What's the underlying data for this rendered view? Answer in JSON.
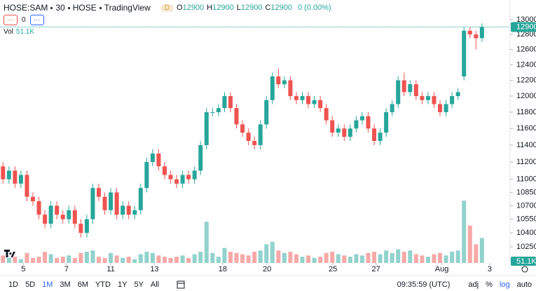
{
  "header": {
    "symbol": "HOSE:SAM",
    "interval": "30",
    "exchange": "HOSE",
    "source": "TradingView",
    "flag": "D",
    "ohlc": [
      {
        "label": "O",
        "value": "12900"
      },
      {
        "label": "H",
        "value": "12900"
      },
      {
        "label": "L",
        "value": "12900"
      },
      {
        "label": "C",
        "value": "12900"
      }
    ],
    "change": "0 (0.00%)",
    "buttons": [
      "…",
      "…"
    ],
    "indicator_count": "0",
    "vol_label": "Vol",
    "vol_value": "51.1K"
  },
  "chart_data": {
    "type": "candlestick",
    "log_scale": true,
    "up_color": "#26a69a",
    "down_color": "#ef5350",
    "xlim": [
      -0.5,
      84.7
    ],
    "ylim": [
      10115,
      13076
    ],
    "yticks": [
      13000,
      12800,
      12600,
      12400,
      12200,
      12000,
      11800,
      11600,
      11400,
      11200,
      11000,
      10850,
      10700,
      10550,
      10400,
      10250
    ],
    "xticks": [
      {
        "value": 3.4,
        "label": "5"
      },
      {
        "value": 10.6,
        "label": "7"
      },
      {
        "value": 18,
        "label": "11"
      },
      {
        "value": 25.3,
        "label": "13"
      },
      {
        "value": 36.7,
        "label": "18"
      },
      {
        "value": 44.1,
        "label": "20"
      },
      {
        "value": 55.1,
        "label": "25"
      },
      {
        "value": 62.3,
        "label": "27"
      },
      {
        "value": 73.3,
        "label": "Aug"
      },
      {
        "value": 81.3,
        "label": "3"
      }
    ],
    "open": [
      11150,
      11000,
      11100,
      10950,
      11050,
      10800,
      10750,
      10600,
      10500,
      10700,
      10600,
      10550,
      10650,
      10500,
      10400,
      10550,
      10900,
      10800,
      10650,
      10850,
      10600,
      10700,
      10600,
      10650,
      10900,
      11200,
      11300,
      11150,
      11050,
      11000,
      10950,
      11050,
      11000,
      11100,
      11400,
      11800,
      11800,
      11850,
      12000,
      11850,
      11650,
      11550,
      11450,
      11400,
      11650,
      11950,
      12250,
      12150,
      12200,
      12000,
      11950,
      12000,
      11900,
      11950,
      11850,
      11700,
      11550,
      11600,
      11500,
      11600,
      11700,
      11750,
      11600,
      11450,
      11550,
      11800,
      11900,
      12200,
      12050,
      12150,
      12000,
      11950,
      12000,
      11900,
      11800,
      11900,
      12000,
      12250,
      12850,
      12800,
      12750
    ],
    "high": [
      11200,
      11150,
      11150,
      11100,
      11100,
      10850,
      10800,
      10650,
      10750,
      10750,
      10650,
      10700,
      10700,
      10550,
      10600,
      10950,
      10950,
      10850,
      10900,
      10900,
      10750,
      10750,
      10700,
      10950,
      11250,
      11350,
      11350,
      11200,
      11100,
      11050,
      11100,
      11100,
      11150,
      11450,
      11850,
      11850,
      11900,
      12050,
      12050,
      11900,
      11700,
      11600,
      11500,
      11700,
      12000,
      12300,
      12350,
      12250,
      12250,
      12050,
      12050,
      12050,
      12000,
      12000,
      11900,
      11750,
      11650,
      11650,
      11650,
      11750,
      11800,
      11800,
      11650,
      11600,
      11850,
      11950,
      12250,
      12300,
      12200,
      12200,
      12050,
      12050,
      12050,
      11950,
      11950,
      12050,
      12100,
      12900,
      12900,
      12850,
      12950
    ],
    "low": [
      10950,
      10950,
      10900,
      10900,
      10750,
      10700,
      10550,
      10450,
      10450,
      10550,
      10500,
      10500,
      10450,
      10350,
      10350,
      10500,
      10750,
      10600,
      10600,
      10550,
      10550,
      10550,
      10550,
      10600,
      10850,
      11150,
      11100,
      11000,
      10950,
      10900,
      10900,
      10950,
      10950,
      11050,
      11350,
      11750,
      11750,
      11800,
      11800,
      11600,
      11500,
      11400,
      11350,
      11350,
      11600,
      11900,
      12100,
      12100,
      11950,
      11900,
      11900,
      11850,
      11850,
      11800,
      11650,
      11500,
      11500,
      11450,
      11450,
      11550,
      11650,
      11550,
      11400,
      11400,
      11500,
      11750,
      11850,
      12000,
      12000,
      11950,
      11900,
      11900,
      11850,
      11750,
      11750,
      11850,
      11950,
      12200,
      12750,
      12600,
      12700
    ],
    "close": [
      11000,
      11100,
      10950,
      11050,
      10800,
      10750,
      10600,
      10500,
      10700,
      10600,
      10550,
      10650,
      10500,
      10400,
      10550,
      10900,
      10800,
      10650,
      10850,
      10600,
      10700,
      10600,
      10650,
      10900,
      11200,
      11300,
      11150,
      11050,
      11000,
      10950,
      11050,
      11000,
      11100,
      11400,
      11800,
      11800,
      11850,
      12000,
      11850,
      11650,
      11550,
      11450,
      11400,
      11650,
      11950,
      12250,
      12150,
      12200,
      12000,
      11950,
      12000,
      11900,
      11950,
      11850,
      11700,
      11550,
      11600,
      11500,
      11600,
      11700,
      11750,
      11600,
      11450,
      11550,
      11800,
      11900,
      12200,
      12050,
      12150,
      12000,
      11950,
      12000,
      11900,
      11800,
      11900,
      12000,
      12050,
      12850,
      12800,
      12750,
      12900
    ],
    "volume": [
      60000,
      40000,
      50000,
      30000,
      80000,
      40000,
      50000,
      90000,
      70000,
      40000,
      50000,
      60000,
      40000,
      80000,
      90000,
      100000,
      50000,
      40000,
      80000,
      60000,
      40000,
      50000,
      30000,
      70000,
      90000,
      80000,
      60000,
      50000,
      40000,
      50000,
      60000,
      40000,
      70000,
      90000,
      330000,
      80000,
      50000,
      120000,
      90000,
      80000,
      70000,
      60000,
      90000,
      100000,
      150000,
      170000,
      100000,
      80000,
      90000,
      70000,
      50000,
      60000,
      40000,
      50000,
      80000,
      90000,
      70000,
      60000,
      50000,
      70000,
      60000,
      80000,
      90000,
      70000,
      100000,
      80000,
      110000,
      90000,
      100000,
      70000,
      60000,
      50000,
      70000,
      80000,
      60000,
      90000,
      100000,
      500000,
      300000,
      150000,
      200000
    ],
    "volume_lim": [
      0,
      900000
    ],
    "volume_label": "51.1K"
  },
  "toolbar": {
    "ranges": [
      "1D",
      "5D",
      "1M",
      "3M",
      "6M",
      "YTD",
      "1Y",
      "5Y",
      "All"
    ],
    "active_range_index": 2,
    "clock": "09:35:59 (UTC)",
    "options": [
      "adj",
      "%",
      "log",
      "auto"
    ],
    "active_option_index": 2
  }
}
